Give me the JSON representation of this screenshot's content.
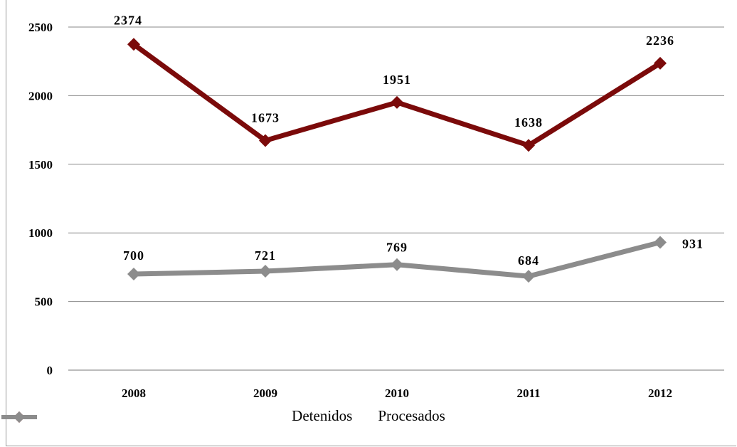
{
  "chart_data": {
    "type": "line",
    "categories": [
      "2008",
      "2009",
      "2010",
      "2011",
      "2012"
    ],
    "series": [
      {
        "name": "Detenidos",
        "values": [
          2374,
          1673,
          1951,
          1638,
          2236
        ],
        "color": "#7b0a0a"
      },
      {
        "name": "Procesados",
        "values": [
          700,
          721,
          769,
          684,
          931
        ],
        "color": "#8c8c8c"
      }
    ],
    "ylim": [
      0,
      2500
    ],
    "yticks": [
      "0",
      "500",
      "1000",
      "1500",
      "2000",
      "2500"
    ],
    "grid": true,
    "legend": "bottom",
    "title": "",
    "xlabel": "",
    "ylabel": ""
  }
}
